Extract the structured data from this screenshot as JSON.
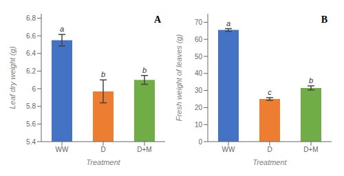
{
  "chart_data": [
    {
      "type": "bar",
      "categories": [
        "WW",
        "D",
        "D+M"
      ],
      "values": [
        6.55,
        5.97,
        6.1
      ],
      "errors": [
        0.065,
        0.13,
        0.05
      ],
      "colors": [
        "#4472C4",
        "#ED7D31",
        "#70AD47"
      ],
      "ylabel": "Leaf dry weight (g)",
      "xlabel": "Treatment",
      "ylim": [
        5.4,
        6.85
      ],
      "yticks": [
        5.4,
        5.6,
        5.8,
        6.0,
        6.2,
        6.4,
        6.6,
        6.8
      ],
      "letters": [
        "a",
        "b",
        "b"
      ],
      "panel_label": "A"
    },
    {
      "type": "bar",
      "categories": [
        "WW",
        "D",
        "D+M"
      ],
      "values": [
        65.5,
        25.0,
        31.5
      ],
      "errors": [
        0.8,
        0.8,
        1.2
      ],
      "colors": [
        "#4472C4",
        "#ED7D31",
        "#70AD47"
      ],
      "ylabel": "Fresh weight of leaves (g)",
      "xlabel": "Treatment",
      "ylim": [
        0,
        75
      ],
      "yticks": [
        0,
        10,
        20,
        30,
        40,
        50,
        60,
        70
      ],
      "letters": [
        "a",
        "c",
        "b"
      ],
      "panel_label": "B"
    }
  ]
}
